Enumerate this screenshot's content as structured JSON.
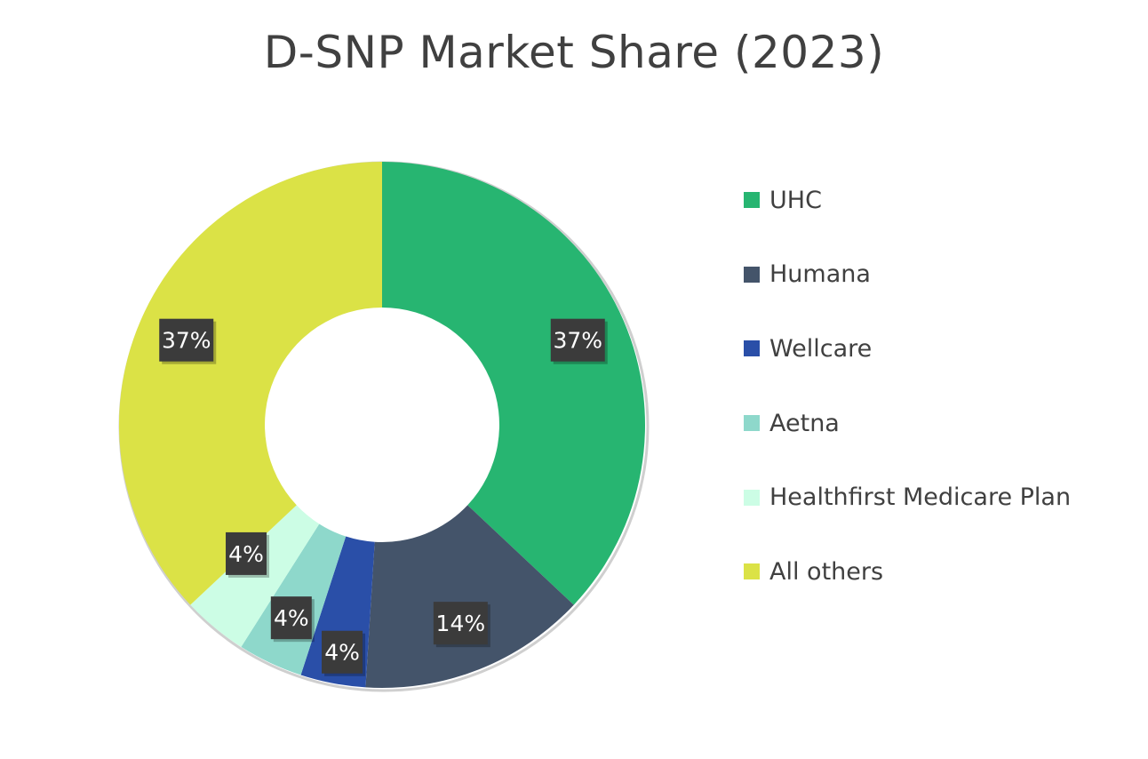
{
  "chart_data": {
    "type": "pie",
    "subtype": "donut",
    "title": "D-SNP Market Share (2023)",
    "categories": [
      "UHC",
      "Humana",
      "Wellcare",
      "Aetna",
      "Healthfirst Medicare Plan",
      "All others"
    ],
    "values": [
      37,
      14,
      4,
      4,
      4,
      37
    ],
    "data_labels": [
      "37%",
      "14%",
      "4%",
      "4%",
      "4%",
      "37%"
    ],
    "colors": [
      "#27b571",
      "#44546a",
      "#2a4fa8",
      "#8ed8cb",
      "#ccfde5",
      "#dbe246"
    ],
    "legend_position": "right"
  }
}
